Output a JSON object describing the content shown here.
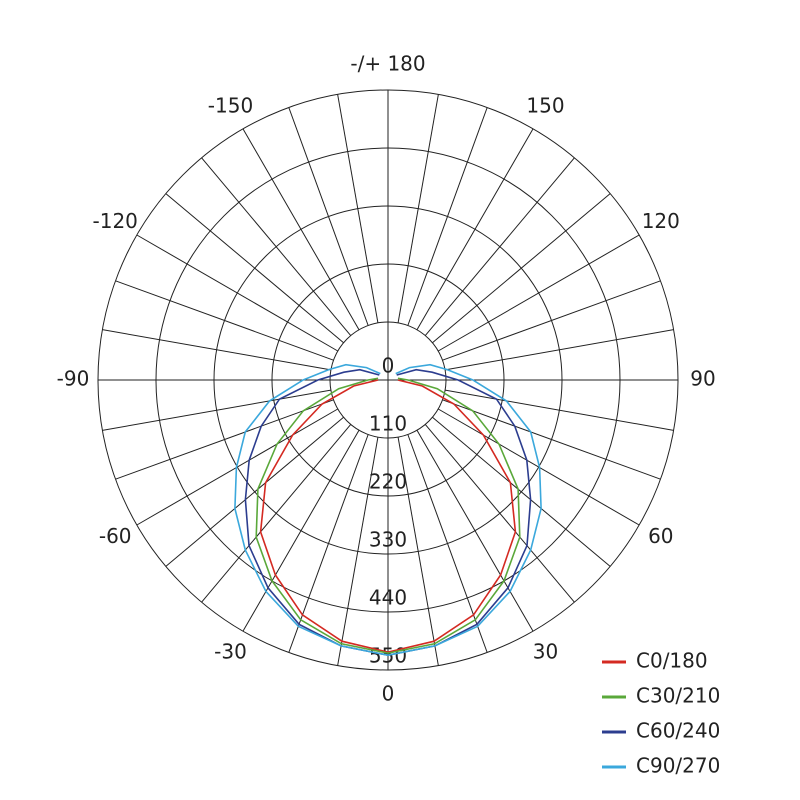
{
  "chart_data": {
    "type": "polar",
    "x": [
      -130,
      -120,
      -110,
      -100,
      -90,
      -80,
      -70,
      -60,
      -50,
      -40,
      -30,
      -20,
      -10,
      0,
      10,
      20,
      30,
      40,
      50,
      60,
      70,
      80,
      90,
      100,
      110,
      120,
      130
    ],
    "series": [
      {
        "name": "C0/180",
        "color": "#d42a22",
        "values": [
          null,
          null,
          null,
          null,
          19,
          66,
          133,
          209,
          303,
          376,
          427,
          474,
          503,
          516,
          503,
          474,
          427,
          376,
          303,
          209,
          133,
          66,
          19,
          null,
          null,
          null,
          null
        ]
      },
      {
        "name": "C30/210",
        "color": "#5aa83a",
        "values": [
          null,
          null,
          null,
          19,
          38,
          95,
          171,
          243,
          322,
          389,
          440,
          484,
          508,
          518,
          508,
          484,
          440,
          389,
          322,
          243,
          171,
          95,
          38,
          19,
          null,
          null,
          null
        ]
      },
      {
        "name": "C60/240",
        "color": "#2c3d8f",
        "values": [
          null,
          19,
          57,
          85,
          133,
          209,
          256,
          304,
          353,
          410,
          455,
          493,
          512,
          522,
          512,
          493,
          455,
          410,
          353,
          304,
          256,
          209,
          133,
          85,
          57,
          19,
          null
        ]
      },
      {
        "name": "C90/270",
        "color": "#3ba8dc",
        "values": [
          19,
          47,
          85,
          114,
          161,
          228,
          288,
          332,
          379,
          421,
          463,
          497,
          512,
          522,
          512,
          497,
          463,
          421,
          379,
          332,
          288,
          228,
          161,
          114,
          85,
          47,
          19
        ]
      }
    ],
    "rlim": [
      0,
      550
    ],
    "rticks": [
      0,
      110,
      220,
      330,
      440,
      550
    ],
    "angleticks": [
      0,
      30,
      60,
      90,
      120,
      150,
      {
        "value": 180,
        "label": "-/+ 180"
      },
      -150,
      -120,
      -90,
      -60,
      -30
    ],
    "grid": true,
    "legend": "lower right"
  }
}
